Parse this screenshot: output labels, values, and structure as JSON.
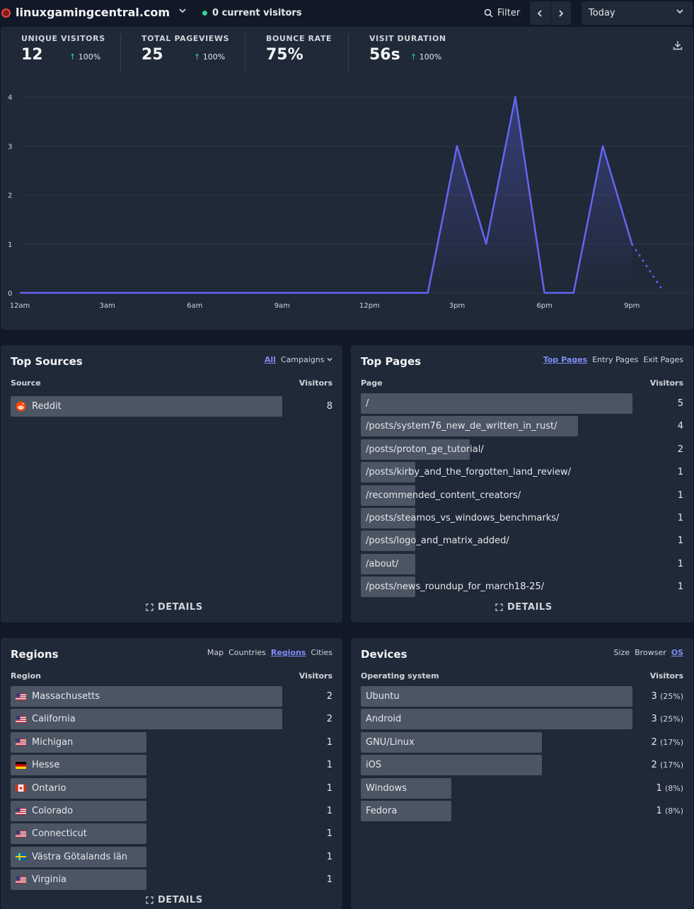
{
  "header": {
    "site": "linuxgamingcentral.com",
    "current_visitors": "0 current visitors",
    "filter_label": "Filter",
    "period": "Today"
  },
  "stats": [
    {
      "label": "UNIQUE VISITORS",
      "value": "12",
      "change": "100%"
    },
    {
      "label": "TOTAL PAGEVIEWS",
      "value": "25",
      "change": "100%"
    },
    {
      "label": "BOUNCE RATE",
      "value": "75%"
    },
    {
      "label": "VISIT DURATION",
      "value": "56s",
      "change": "100%"
    }
  ],
  "chart_data": {
    "type": "line",
    "x": [
      "12am",
      "1am",
      "2am",
      "3am",
      "4am",
      "5am",
      "6am",
      "7am",
      "8am",
      "9am",
      "10am",
      "11am",
      "12pm",
      "1pm",
      "2pm",
      "3pm",
      "4pm",
      "5pm",
      "6pm",
      "7pm",
      "8pm",
      "9pm",
      "10pm"
    ],
    "series": [
      {
        "values": [
          0,
          0,
          0,
          0,
          0,
          0,
          0,
          0,
          0,
          0,
          0,
          0,
          0,
          0,
          0,
          3,
          1,
          4,
          0,
          0,
          3,
          1,
          0.1
        ]
      }
    ],
    "x_tick_labels": [
      "12am",
      "3am",
      "6am",
      "9am",
      "12pm",
      "3pm",
      "6pm",
      "9pm"
    ],
    "y_tick_labels": [
      "0",
      "1",
      "2",
      "3",
      "4"
    ],
    "ylim": [
      0,
      4
    ],
    "grid": true,
    "line_color": "#6366f1",
    "dashed_from_index": 21
  },
  "sources": {
    "title": "Top Sources",
    "tabs": [
      {
        "label": "All",
        "active": true
      },
      {
        "label": "Campaigns",
        "active": false
      }
    ],
    "col_label": "Source",
    "col_value": "Visitors",
    "rows": [
      {
        "label": "Reddit",
        "value": "8",
        "ratio": 1.0
      }
    ],
    "details": "DETAILS"
  },
  "pages": {
    "title": "Top Pages",
    "tabs": [
      {
        "label": "Top Pages",
        "active": true
      },
      {
        "label": "Entry Pages",
        "active": false
      },
      {
        "label": "Exit Pages",
        "active": false
      }
    ],
    "col_label": "Page",
    "col_value": "Visitors",
    "rows": [
      {
        "label": "/",
        "value": "5",
        "ratio": 1.0
      },
      {
        "label": "/posts/system76_new_de_written_in_rust/",
        "value": "4",
        "ratio": 0.8
      },
      {
        "label": "/posts/proton_ge_tutorial/",
        "value": "2",
        "ratio": 0.4
      },
      {
        "label": "/posts/kirby_and_the_forgotten_land_review/",
        "value": "1",
        "ratio": 0.2
      },
      {
        "label": "/recommended_content_creators/",
        "value": "1",
        "ratio": 0.2
      },
      {
        "label": "/posts/steamos_vs_windows_benchmarks/",
        "value": "1",
        "ratio": 0.2
      },
      {
        "label": "/posts/logo_and_matrix_added/",
        "value": "1",
        "ratio": 0.2
      },
      {
        "label": "/about/",
        "value": "1",
        "ratio": 0.2
      },
      {
        "label": "/posts/news_roundup_for_march18-25/",
        "value": "1",
        "ratio": 0.2
      }
    ],
    "details": "DETAILS"
  },
  "regions": {
    "title": "Regions",
    "tabs": [
      {
        "label": "Map",
        "active": false
      },
      {
        "label": "Countries",
        "active": false
      },
      {
        "label": "Regions",
        "active": true
      },
      {
        "label": "Cities",
        "active": false
      }
    ],
    "col_label": "Region",
    "col_value": "Visitors",
    "rows": [
      {
        "label": "Massachusetts",
        "value": "2",
        "ratio": 1.0,
        "flag": "us"
      },
      {
        "label": "California",
        "value": "2",
        "ratio": 1.0,
        "flag": "us"
      },
      {
        "label": "Michigan",
        "value": "1",
        "ratio": 0.5,
        "flag": "us"
      },
      {
        "label": "Hesse",
        "value": "1",
        "ratio": 0.5,
        "flag": "de"
      },
      {
        "label": "Ontario",
        "value": "1",
        "ratio": 0.5,
        "flag": "ca"
      },
      {
        "label": "Colorado",
        "value": "1",
        "ratio": 0.5,
        "flag": "us"
      },
      {
        "label": "Connecticut",
        "value": "1",
        "ratio": 0.5,
        "flag": "us"
      },
      {
        "label": "Västra Götalands län",
        "value": "1",
        "ratio": 0.5,
        "flag": "se"
      },
      {
        "label": "Virginia",
        "value": "1",
        "ratio": 0.5,
        "flag": "us"
      }
    ],
    "details": "DETAILS"
  },
  "devices": {
    "title": "Devices",
    "tabs": [
      {
        "label": "Size",
        "active": false
      },
      {
        "label": "Browser",
        "active": false
      },
      {
        "label": "OS",
        "active": true
      }
    ],
    "col_label": "Operating system",
    "col_value": "Visitors",
    "rows": [
      {
        "label": "Ubuntu",
        "value": "3",
        "pct": "(25%)",
        "ratio": 1.0
      },
      {
        "label": "Android",
        "value": "3",
        "pct": "(25%)",
        "ratio": 1.0
      },
      {
        "label": "GNU/Linux",
        "value": "2",
        "pct": "(17%)",
        "ratio": 0.667
      },
      {
        "label": "iOS",
        "value": "2",
        "pct": "(17%)",
        "ratio": 0.667
      },
      {
        "label": "Windows",
        "value": "1",
        "pct": "(8%)",
        "ratio": 0.333
      },
      {
        "label": "Fedora",
        "value": "1",
        "pct": "(8%)",
        "ratio": 0.333
      }
    ]
  }
}
